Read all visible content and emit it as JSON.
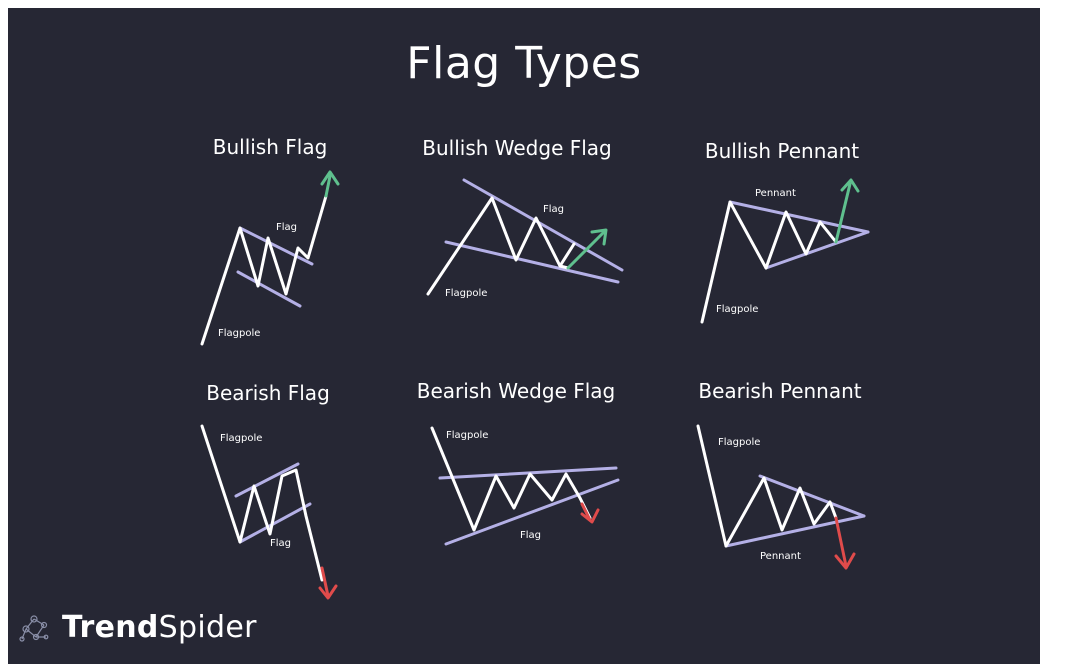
{
  "title": "Flag Types",
  "colors": {
    "background": "#262734",
    "price_line": "#ffffff",
    "pattern_line": "#b4b0e6",
    "bullish_arrow": "#5fc08e",
    "bearish_arrow": "#e04b4b"
  },
  "patterns": [
    {
      "name": "Bullish Flag",
      "pole_label": "Flagpole",
      "pattern_label": "Flag",
      "direction": "up"
    },
    {
      "name": "Bullish Wedge Flag",
      "pole_label": "Flagpole",
      "pattern_label": "Flag",
      "direction": "up"
    },
    {
      "name": "Bullish Pennant",
      "pole_label": "Flagpole",
      "pattern_label": "Pennant",
      "direction": "up"
    },
    {
      "name": "Bearish Flag",
      "pole_label": "Flagpole",
      "pattern_label": "Flag",
      "direction": "down"
    },
    {
      "name": "Bearish Wedge Flag",
      "pole_label": "Flagpole",
      "pattern_label": "Flag",
      "direction": "down"
    },
    {
      "name": "Bearish Pennant",
      "pole_label": "Flagpole",
      "pattern_label": "Pennant",
      "direction": "down"
    }
  ],
  "brand": {
    "logo_icon": "spider-web-icon",
    "name_bold": "Trend",
    "name_light": "Spider"
  }
}
